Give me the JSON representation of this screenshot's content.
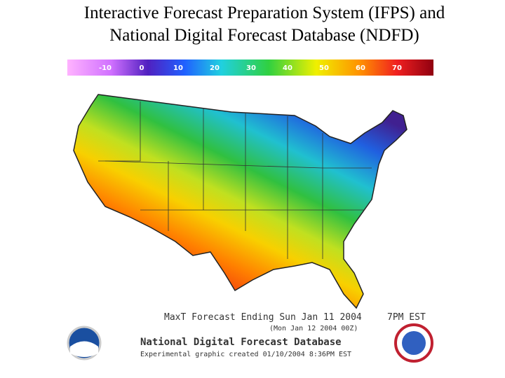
{
  "title": [
    "Interactive Forecast Preparation System (IFPS) and",
    "National Digital Forecast Database (NDFD)"
  ],
  "legend": {
    "ticks": [
      -10,
      0,
      10,
      20,
      30,
      40,
      50,
      60,
      70
    ]
  },
  "caption": {
    "product": "MaxT  Forecast Ending Sun Jan 11 2004",
    "time": "7PM EST",
    "utc": "(Mon Jan 12 2004 00Z)",
    "database": "National Digital Forecast Database",
    "created": "Experimental graphic created 01/10/2004  8:36PM EST"
  }
}
